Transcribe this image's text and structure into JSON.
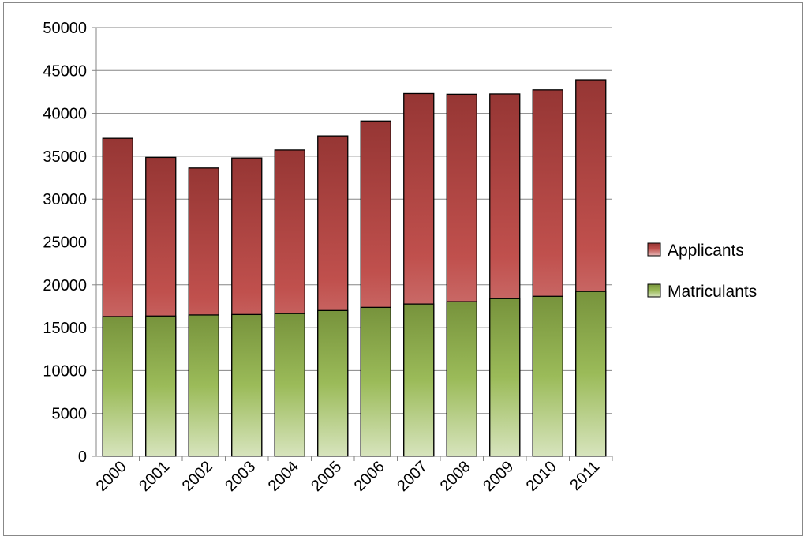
{
  "chart_data": {
    "type": "bar",
    "bar_mode": "overlapping",
    "categories": [
      "2000",
      "2001",
      "2002",
      "2003",
      "2004",
      "2005",
      "2006",
      "2007",
      "2008",
      "2009",
      "2010",
      "2011"
    ],
    "series": [
      {
        "name": "Applicants",
        "color": "#c0504d",
        "values": [
          37092,
          34860,
          33625,
          34791,
          35735,
          37372,
          39108,
          42315,
          42231,
          42269,
          42742,
          43919
        ]
      },
      {
        "name": "Matriculants",
        "color": "#9bbb59",
        "values": [
          16301,
          16365,
          16488,
          16541,
          16648,
          17004,
          17370,
          17759,
          18036,
          18390,
          18665,
          19230
        ]
      }
    ],
    "title": "",
    "xlabel": "",
    "ylabel": "",
    "ylim": [
      0,
      50000
    ],
    "yticks": [
      "0",
      "5000",
      "10000",
      "15000",
      "20000",
      "25000",
      "30000",
      "35000",
      "40000",
      "45000",
      "50000"
    ],
    "grid": true,
    "legend": "right"
  }
}
